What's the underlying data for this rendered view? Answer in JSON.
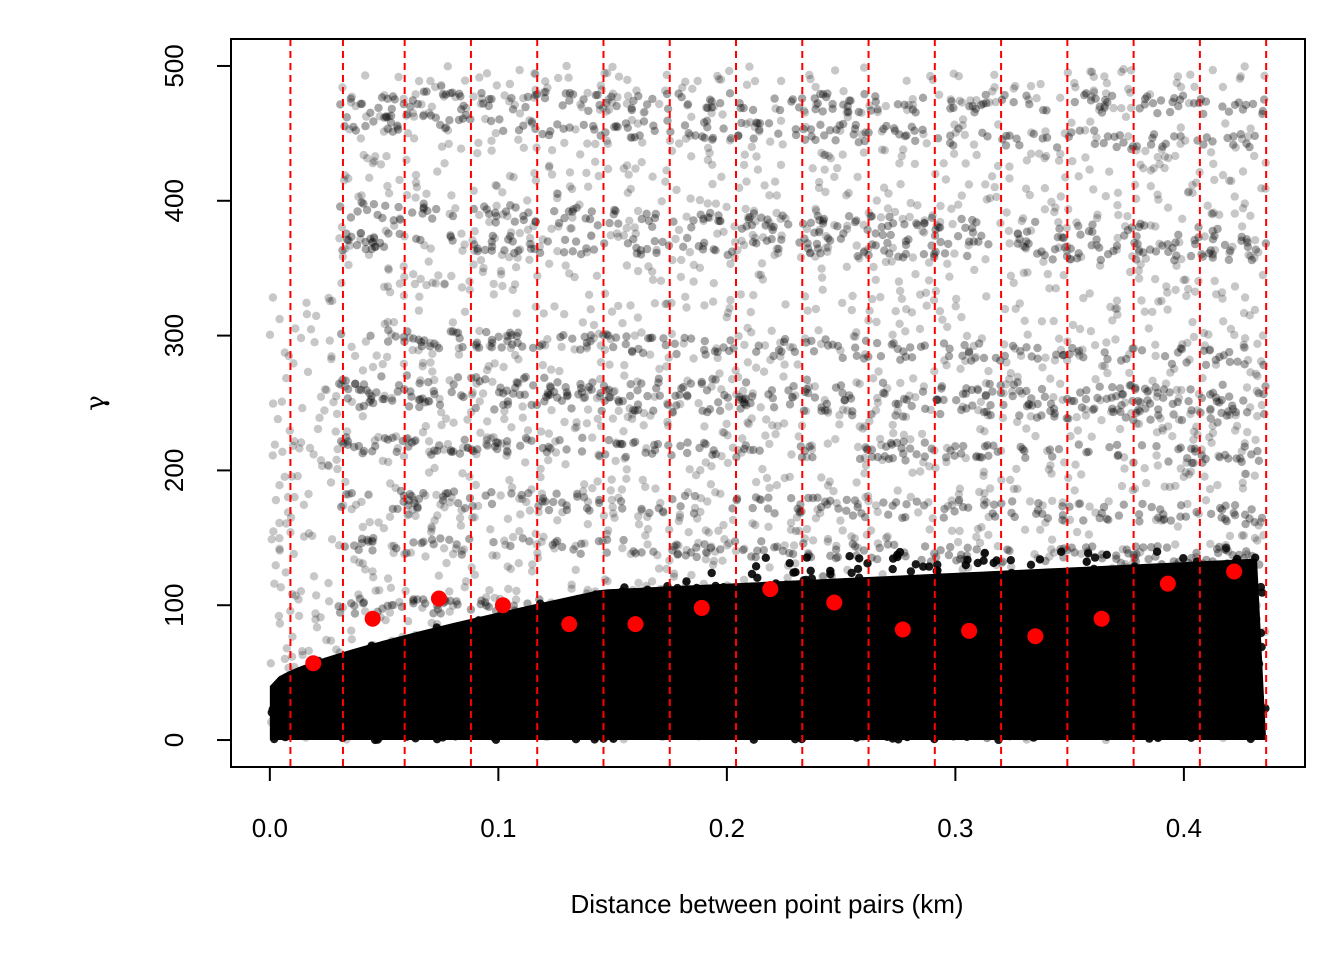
{
  "chart_data": {
    "type": "scatter",
    "xlabel": "Distance between point pairs (km)",
    "ylabel": "γ",
    "xlim": [
      -0.017,
      0.453
    ],
    "ylim": [
      -20,
      520
    ],
    "x_ticks": [
      {
        "value": 0.0,
        "label": "0.0"
      },
      {
        "value": 0.1,
        "label": "0.1"
      },
      {
        "value": 0.2,
        "label": "0.2"
      },
      {
        "value": 0.3,
        "label": "0.3"
      },
      {
        "value": 0.4,
        "label": "0.4"
      }
    ],
    "y_ticks": [
      {
        "value": 0,
        "label": "0"
      },
      {
        "value": 100,
        "label": "100"
      },
      {
        "value": 200,
        "label": "200"
      },
      {
        "value": 300,
        "label": "300"
      },
      {
        "value": 400,
        "label": "400"
      },
      {
        "value": 500,
        "label": "500"
      }
    ],
    "bin_breaks": [
      0.009,
      0.032,
      0.059,
      0.088,
      0.117,
      0.146,
      0.175,
      0.204,
      0.233,
      0.262,
      0.291,
      0.32,
      0.349,
      0.378,
      0.407,
      0.436
    ],
    "series": [
      {
        "role": "point-pairs",
        "color": "#000000",
        "style": "semi-transparent dense cloud"
      },
      {
        "role": "binned-means",
        "color": "#ff0000",
        "x": [
          0.019,
          0.045,
          0.074,
          0.102,
          0.131,
          0.16,
          0.189,
          0.219,
          0.247,
          0.277,
          0.306,
          0.335,
          0.364,
          0.393,
          0.422
        ],
        "y": [
          57,
          90,
          105,
          100,
          86,
          86,
          98,
          112,
          102,
          82,
          81,
          77,
          90,
          116,
          125
        ]
      }
    ],
    "grid": false,
    "legend": "none"
  }
}
